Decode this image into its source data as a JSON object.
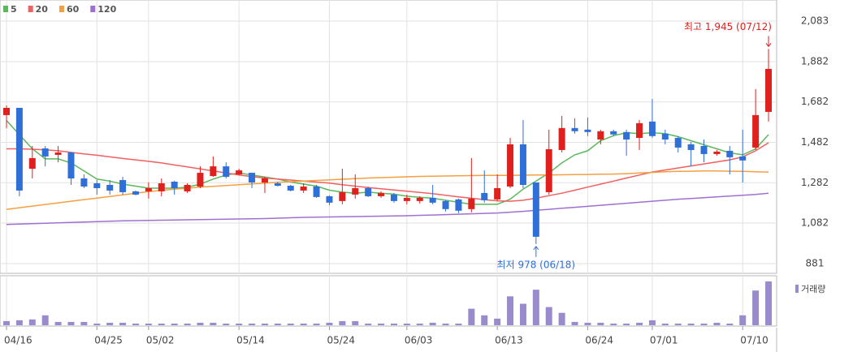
{
  "chart_data": {
    "type": "candlestick",
    "categories": [
      "04/16",
      null,
      null,
      null,
      null,
      null,
      null,
      "04/25",
      null,
      null,
      null,
      "05/02",
      null,
      null,
      null,
      null,
      null,
      null,
      "05/14",
      null,
      null,
      null,
      null,
      null,
      null,
      "05/24",
      null,
      null,
      null,
      null,
      null,
      "06/03",
      null,
      null,
      null,
      null,
      null,
      null,
      "06/13",
      null,
      null,
      null,
      null,
      null,
      null,
      "06/24",
      null,
      null,
      null,
      null,
      "07/01",
      null,
      null,
      null,
      null,
      null,
      null,
      "07/10",
      null,
      null
    ],
    "open": [
      1617,
      1653,
      1351,
      1452,
      1420,
      1432,
      1303,
      1279,
      1271,
      1295,
      1239,
      1239,
      1239,
      1287,
      1239,
      1263,
      1315,
      1363,
      1323,
      1331,
      1283,
      1279,
      1267,
      1243,
      1263,
      1215,
      1191,
      1223,
      1255,
      1215,
      1223,
      1191,
      1191,
      1207,
      1191,
      1199,
      1151,
      1231,
      1199,
      1263,
      1472,
      1283,
      1235,
      1444,
      1553,
      1545,
      1496,
      1537,
      1533,
      1504,
      1585,
      1525,
      1504,
      1472,
      1464,
      1424,
      1440,
      1412,
      1456,
      1633
    ],
    "high": [
      1665,
      1653,
      1464,
      1464,
      1464,
      1432,
      1323,
      1295,
      1295,
      1311,
      1243,
      1283,
      1303,
      1291,
      1279,
      1363,
      1412,
      1383,
      1351,
      1331,
      1311,
      1287,
      1271,
      1279,
      1271,
      1219,
      1351,
      1323,
      1263,
      1239,
      1231,
      1223,
      1215,
      1271,
      1195,
      1203,
      1404,
      1343,
      1323,
      1504,
      1593,
      1283,
      1545,
      1613,
      1601,
      1605,
      1545,
      1545,
      1545,
      1593,
      1697,
      1545,
      1512,
      1484,
      1496,
      1444,
      1464,
      1545,
      1746,
      1945
    ],
    "low": [
      1552,
      1215,
      1303,
      1363,
      1383,
      1271,
      1255,
      1223,
      1223,
      1223,
      1219,
      1203,
      1215,
      1223,
      1231,
      1255,
      1311,
      1303,
      1319,
      1255,
      1231,
      1263,
      1239,
      1231,
      1207,
      1171,
      1175,
      1203,
      1211,
      1207,
      1183,
      1175,
      1179,
      1175,
      1139,
      1131,
      1135,
      1183,
      1191,
      1255,
      1255,
      978,
      1223,
      1432,
      1525,
      1513,
      1472,
      1513,
      1416,
      1444,
      1504,
      1472,
      1432,
      1363,
      1383,
      1416,
      1323,
      1283,
      1444,
      1585
    ],
    "close": [
      1653,
      1243,
      1404,
      1412,
      1432,
      1303,
      1263,
      1255,
      1243,
      1235,
      1223,
      1255,
      1279,
      1255,
      1271,
      1331,
      1363,
      1311,
      1343,
      1283,
      1303,
      1267,
      1243,
      1263,
      1211,
      1183,
      1235,
      1255,
      1215,
      1231,
      1191,
      1207,
      1207,
      1183,
      1151,
      1143,
      1203,
      1195,
      1255,
      1472,
      1271,
      1014,
      1448,
      1553,
      1537,
      1533,
      1537,
      1521,
      1496,
      1577,
      1513,
      1496,
      1456,
      1444,
      1424,
      1436,
      1408,
      1392,
      1617,
      1846
    ],
    "up_color": "#e0201c",
    "down_color": "#2f6fd8",
    "ma": [
      {
        "name": "5",
        "color": "#5cb85c",
        "values": [
          1590,
          1520,
          1450,
          1400,
          1400,
          1380,
          1340,
          1300,
          1290,
          1275,
          1265,
          1255,
          1255,
          1255,
          1260,
          1275,
          1300,
          1320,
          1330,
          1320,
          1310,
          1300,
          1285,
          1275,
          1265,
          1245,
          1235,
          1230,
          1235,
          1230,
          1225,
          1215,
          1210,
          1205,
          1195,
          1185,
          1175,
          1175,
          1175,
          1200,
          1250,
          1290,
          1330,
          1380,
          1420,
          1440,
          1490,
          1515,
          1530,
          1525,
          1530,
          1525,
          1510,
          1490,
          1470,
          1450,
          1430,
          1420,
          1450,
          1520
        ]
      },
      {
        "name": "20",
        "color": "#f06060",
        "values": [
          1450,
          1450,
          1448,
          1445,
          1440,
          1432,
          1425,
          1418,
          1410,
          1402,
          1395,
          1388,
          1380,
          1370,
          1360,
          1350,
          1340,
          1330,
          1320,
          1312,
          1305,
          1300,
          1295,
          1290,
          1285,
          1280,
          1272,
          1265,
          1258,
          1252,
          1246,
          1240,
          1234,
          1228,
          1220,
          1212,
          1205,
          1198,
          1192,
          1190,
          1195,
          1205,
          1218,
          1230,
          1245,
          1260,
          1275,
          1290,
          1305,
          1320,
          1335,
          1345,
          1355,
          1365,
          1375,
          1385,
          1395,
          1410,
          1440,
          1480
        ]
      },
      {
        "name": "60",
        "color": "#f5a040",
        "values": [
          1150,
          1158,
          1166,
          1174,
          1182,
          1190,
          1198,
          1206,
          1214,
          1222,
          1230,
          1238,
          1244,
          1250,
          1255,
          1260,
          1264,
          1268,
          1272,
          1276,
          1280,
          1284,
          1287,
          1290,
          1293,
          1296,
          1299,
          1302,
          1305,
          1307,
          1309,
          1311,
          1313,
          1314,
          1315,
          1316,
          1317,
          1318,
          1318,
          1318,
          1319,
          1320,
          1320,
          1321,
          1322,
          1323,
          1324,
          1325,
          1327,
          1330,
          1333,
          1336,
          1338,
          1339,
          1340,
          1340,
          1339,
          1338,
          1336,
          1334
        ]
      },
      {
        "name": "120",
        "color": "#a070d0",
        "values": [
          1075,
          1077,
          1079,
          1081,
          1083,
          1085,
          1087,
          1089,
          1091,
          1093,
          1094,
          1095,
          1096,
          1097,
          1098,
          1099,
          1100,
          1101,
          1102,
          1103,
          1104,
          1106,
          1108,
          1110,
          1111,
          1112,
          1113,
          1114,
          1115,
          1116,
          1117,
          1118,
          1120,
          1122,
          1124,
          1126,
          1128,
          1130,
          1132,
          1136,
          1140,
          1145,
          1150,
          1155,
          1160,
          1165,
          1170,
          1175,
          1180,
          1185,
          1190,
          1195,
          1200,
          1204,
          1208,
          1212,
          1216,
          1220,
          1224,
          1230
        ]
      }
    ],
    "volume": {
      "name": "거래량",
      "color": "#9a8ccc",
      "values": [
        5,
        6,
        7,
        12,
        4,
        4,
        4,
        2,
        3,
        3,
        2,
        2,
        2,
        2,
        2,
        3,
        3,
        2,
        2,
        2,
        2,
        2,
        2,
        2,
        2,
        3,
        5,
        5,
        2,
        2,
        2,
        2,
        2,
        3,
        2,
        2,
        20,
        12,
        8,
        35,
        26,
        43,
        22,
        15,
        4,
        3,
        3,
        2,
        2,
        3,
        6,
        2,
        2,
        2,
        2,
        3,
        2,
        12,
        42,
        53
      ]
    },
    "high_label": {
      "text": "최고 1,945 (07/12)",
      "color": "#e0201c"
    },
    "low_label": {
      "text": "최저 978 (06/18)",
      "color": "#2f6fd8"
    },
    "ylim": [
      881,
      2083
    ],
    "yticks": [
      {
        "value": 2083,
        "label": "2,083"
      },
      {
        "value": 1882,
        "label": "1,882"
      },
      {
        "value": 1682,
        "label": "1,682"
      },
      {
        "value": 1482,
        "label": "1,482"
      },
      {
        "value": 1282,
        "label": "1,282"
      },
      {
        "value": 1082,
        "label": "1,082"
      },
      881
    ],
    "grid": true
  }
}
